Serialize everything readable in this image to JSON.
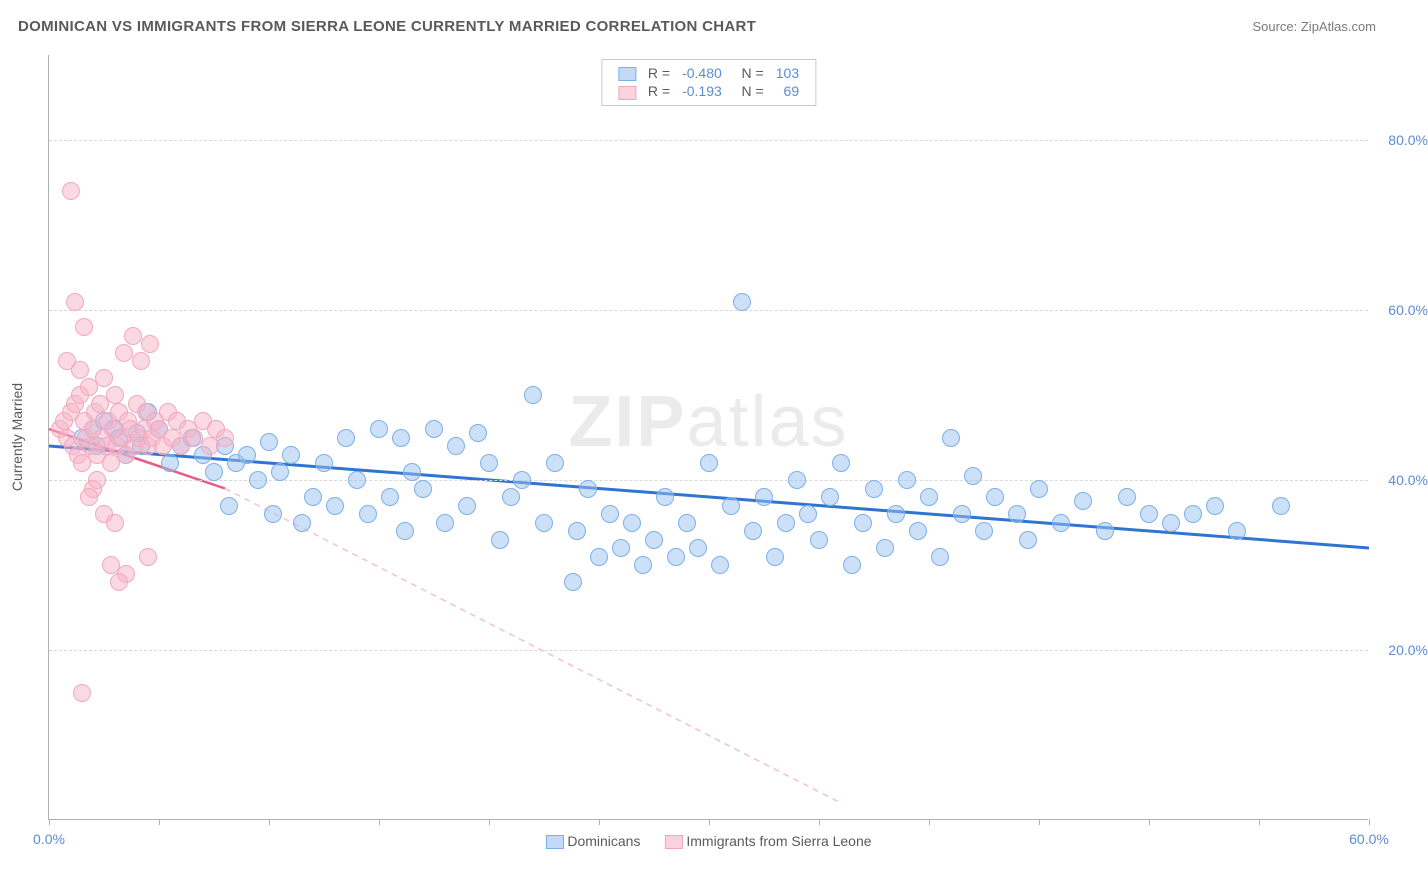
{
  "title": "DOMINICAN VS IMMIGRANTS FROM SIERRA LEONE CURRENTLY MARRIED CORRELATION CHART",
  "source_label": "Source: ZipAtlas.com",
  "watermark": "ZIPatlas",
  "chart": {
    "type": "scatter",
    "x_axis": {
      "min": 0,
      "max": 60,
      "ticks": [
        0,
        60
      ],
      "tick_labels": [
        "0.0%",
        "60.0%"
      ]
    },
    "y_axis": {
      "min": 0,
      "max": 90,
      "label": "Currently Married",
      "gridlines": [
        20,
        40,
        60,
        80
      ],
      "tick_labels": [
        "20.0%",
        "40.0%",
        "60.0%",
        "80.0%"
      ]
    },
    "background_color": "#ffffff",
    "grid_color": "#d8d8d8",
    "axis_color": "#b0b0b0",
    "point_radius": 9,
    "series": [
      {
        "name": "Dominicans",
        "color_fill": "rgba(153,194,239,0.5)",
        "color_stroke": "#7db0e8",
        "trend_color": "#2e74d0",
        "trend_width": 3,
        "R": "-0.480",
        "N": "103",
        "trend": {
          "x1": 0,
          "y1": 44,
          "x2": 60,
          "y2": 32
        },
        "points": [
          [
            1.5,
            45
          ],
          [
            2,
            46
          ],
          [
            2.2,
            44
          ],
          [
            2.5,
            47
          ],
          [
            3,
            46
          ],
          [
            3.2,
            45
          ],
          [
            3.5,
            43
          ],
          [
            4,
            45.5
          ],
          [
            4.2,
            44
          ],
          [
            4.5,
            48
          ],
          [
            5,
            46
          ],
          [
            5.5,
            42
          ],
          [
            6,
            44
          ],
          [
            6.5,
            45
          ],
          [
            7,
            43
          ],
          [
            7.5,
            41
          ],
          [
            8,
            44
          ],
          [
            8.2,
            37
          ],
          [
            8.5,
            42
          ],
          [
            9,
            43
          ],
          [
            9.5,
            40
          ],
          [
            10,
            44.5
          ],
          [
            10.2,
            36
          ],
          [
            10.5,
            41
          ],
          [
            11,
            43
          ],
          [
            11.5,
            35
          ],
          [
            12,
            38
          ],
          [
            12.5,
            42
          ],
          [
            13,
            37
          ],
          [
            13.5,
            45
          ],
          [
            14,
            40
          ],
          [
            14.5,
            36
          ],
          [
            15,
            46
          ],
          [
            15.5,
            38
          ],
          [
            16,
            45
          ],
          [
            16.2,
            34
          ],
          [
            16.5,
            41
          ],
          [
            17,
            39
          ],
          [
            17.5,
            46
          ],
          [
            18,
            35
          ],
          [
            18.5,
            44
          ],
          [
            19,
            37
          ],
          [
            19.5,
            45.5
          ],
          [
            20,
            42
          ],
          [
            20.5,
            33
          ],
          [
            21,
            38
          ],
          [
            21.5,
            40
          ],
          [
            22,
            50
          ],
          [
            22.5,
            35
          ],
          [
            23,
            42
          ],
          [
            23.8,
            28
          ],
          [
            24,
            34
          ],
          [
            24.5,
            39
          ],
          [
            25,
            31
          ],
          [
            25.5,
            36
          ],
          [
            26,
            32
          ],
          [
            26.5,
            35
          ],
          [
            27,
            30
          ],
          [
            27.5,
            33
          ],
          [
            28,
            38
          ],
          [
            28.5,
            31
          ],
          [
            29,
            35
          ],
          [
            29.5,
            32
          ],
          [
            30,
            42
          ],
          [
            30.5,
            30
          ],
          [
            31,
            37
          ],
          [
            31.5,
            61
          ],
          [
            32,
            34
          ],
          [
            32.5,
            38
          ],
          [
            33,
            31
          ],
          [
            33.5,
            35
          ],
          [
            34,
            40
          ],
          [
            34.5,
            36
          ],
          [
            35,
            33
          ],
          [
            35.5,
            38
          ],
          [
            36,
            42
          ],
          [
            36.5,
            30
          ],
          [
            37,
            35
          ],
          [
            37.5,
            39
          ],
          [
            38,
            32
          ],
          [
            38.5,
            36
          ],
          [
            39,
            40
          ],
          [
            39.5,
            34
          ],
          [
            40,
            38
          ],
          [
            40.5,
            31
          ],
          [
            41,
            45
          ],
          [
            41.5,
            36
          ],
          [
            42,
            40.5
          ],
          [
            42.5,
            34
          ],
          [
            43,
            38
          ],
          [
            44,
            36
          ],
          [
            44.5,
            33
          ],
          [
            45,
            39
          ],
          [
            46,
            35
          ],
          [
            47,
            37.5
          ],
          [
            48,
            34
          ],
          [
            49,
            38
          ],
          [
            50,
            36
          ],
          [
            51,
            35
          ],
          [
            52,
            36
          ],
          [
            53,
            37
          ],
          [
            54,
            34
          ],
          [
            56,
            37
          ]
        ]
      },
      {
        "name": "Immigrants from Sierra Leone",
        "color_fill": "rgba(248,180,200,0.5)",
        "color_stroke": "#f0a8c0",
        "trend_color": "#e85a8a",
        "trend_width": 2.5,
        "R": "-0.193",
        "N": "69",
        "trend": {
          "x1": 0,
          "y1": 46,
          "x2": 8,
          "y2": 39
        },
        "trend_extrapolated": {
          "x1": 8,
          "y1": 39,
          "x2": 36,
          "y2": 2
        },
        "points": [
          [
            0.5,
            46
          ],
          [
            0.7,
            47
          ],
          [
            0.8,
            45
          ],
          [
            1,
            48
          ],
          [
            1.1,
            44
          ],
          [
            1.2,
            49
          ],
          [
            1.3,
            43
          ],
          [
            1.4,
            50
          ],
          [
            1.5,
            42
          ],
          [
            1.6,
            47
          ],
          [
            1.7,
            45
          ],
          [
            1.8,
            51
          ],
          [
            1.9,
            44
          ],
          [
            2,
            46
          ],
          [
            2.1,
            48
          ],
          [
            2.2,
            43
          ],
          [
            2.3,
            49
          ],
          [
            2.4,
            45
          ],
          [
            2.5,
            52
          ],
          [
            2.6,
            44
          ],
          [
            2.7,
            47
          ],
          [
            2.8,
            42
          ],
          [
            2.9,
            46
          ],
          [
            3,
            50
          ],
          [
            3.1,
            44
          ],
          [
            3.2,
            48
          ],
          [
            3.3,
            45
          ],
          [
            3.4,
            55
          ],
          [
            3.5,
            43
          ],
          [
            3.6,
            47
          ],
          [
            3.7,
            46
          ],
          [
            3.8,
            57
          ],
          [
            3.9,
            44
          ],
          [
            4,
            49
          ],
          [
            4.1,
            45
          ],
          [
            4.2,
            54
          ],
          [
            4.3,
            46
          ],
          [
            4.4,
            48
          ],
          [
            4.5,
            44
          ],
          [
            4.6,
            56
          ],
          [
            4.7,
            45
          ],
          [
            4.8,
            47
          ],
          [
            5,
            46
          ],
          [
            5.2,
            44
          ],
          [
            5.4,
            48
          ],
          [
            5.6,
            45
          ],
          [
            5.8,
            47
          ],
          [
            6,
            44
          ],
          [
            6.3,
            46
          ],
          [
            6.6,
            45
          ],
          [
            7,
            47
          ],
          [
            7.3,
            44
          ],
          [
            7.6,
            46
          ],
          [
            8,
            45
          ],
          [
            1,
            74
          ],
          [
            1.2,
            61
          ],
          [
            1.6,
            58
          ],
          [
            0.8,
            54
          ],
          [
            1.4,
            53
          ],
          [
            2,
            39
          ],
          [
            2.2,
            40
          ],
          [
            2.5,
            36
          ],
          [
            1.8,
            38
          ],
          [
            3,
            35
          ],
          [
            2.8,
            30
          ],
          [
            3.5,
            29
          ],
          [
            3.2,
            28
          ],
          [
            4.5,
            31
          ],
          [
            1.5,
            15
          ]
        ]
      }
    ],
    "legend_top": {
      "rows": [
        {
          "swatch": "blue",
          "R": "-0.480",
          "N": "103"
        },
        {
          "swatch": "pink",
          "R": "-0.193",
          "N": "69"
        }
      ]
    },
    "legend_bottom": [
      {
        "swatch": "blue",
        "label": "Dominicans"
      },
      {
        "swatch": "pink",
        "label": "Immigrants from Sierra Leone"
      }
    ]
  }
}
